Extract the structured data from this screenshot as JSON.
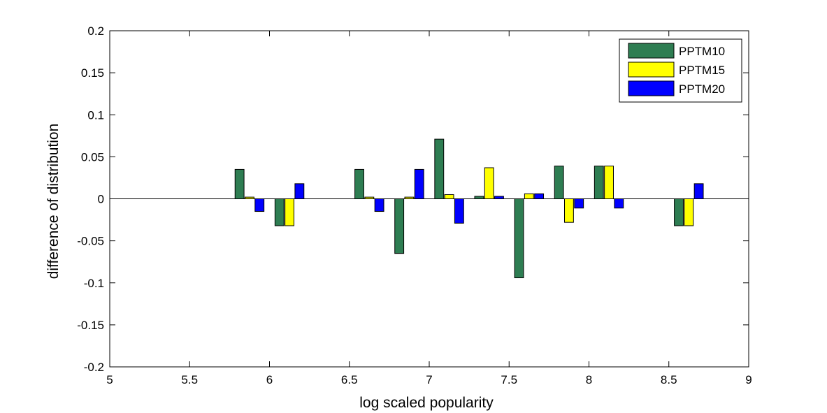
{
  "chart_data": {
    "type": "bar",
    "title": "",
    "xlabel": "log scaled popularity",
    "ylabel": "difference of distribution",
    "xlim": [
      5,
      9
    ],
    "ylim": [
      -0.2,
      0.2
    ],
    "xticks": [
      "5",
      "5.5",
      "6",
      "6.5",
      "7",
      "7.5",
      "8",
      "8.5",
      "9"
    ],
    "yticks": [
      "0.2",
      "0.15",
      "0.1",
      "0.05",
      "0",
      "-0.05",
      "-0.1",
      "-0.15",
      "-0.2"
    ],
    "grid": false,
    "legend_position": "top-right",
    "x": [
      5.875,
      6.125,
      6.625,
      6.875,
      7.125,
      7.375,
      7.625,
      7.875,
      8.125,
      8.625
    ],
    "series": [
      {
        "name": "PPTM10",
        "color": "#2e7d52",
        "values": [
          0.035,
          -0.032,
          0.035,
          -0.065,
          0.071,
          0.003,
          -0.094,
          0.039,
          0.039,
          -0.032
        ]
      },
      {
        "name": "PPTM15",
        "color": "#ffff00",
        "values": [
          0.002,
          -0.032,
          0.002,
          0.002,
          0.005,
          0.037,
          0.006,
          -0.028,
          0.039,
          -0.032
        ]
      },
      {
        "name": "PPTM20",
        "color": "#0000ff",
        "values": [
          -0.015,
          0.018,
          -0.015,
          0.035,
          -0.029,
          0.003,
          0.006,
          -0.011,
          -0.011,
          0.018
        ]
      }
    ]
  }
}
